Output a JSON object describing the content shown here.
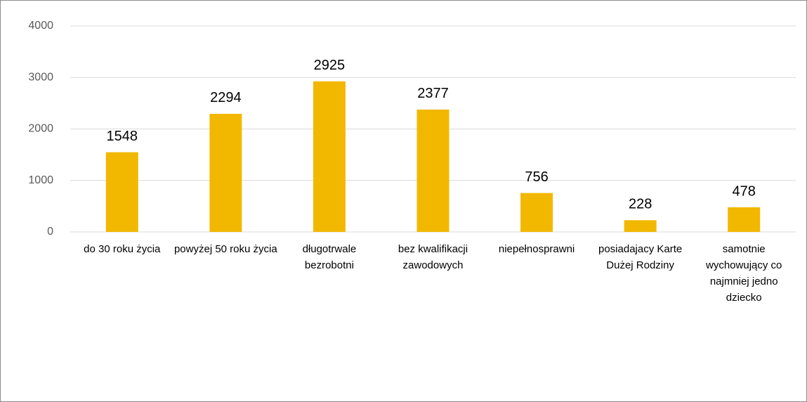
{
  "chart_data": {
    "type": "bar",
    "categories": [
      "do 30 roku życia",
      "powyżej 50 roku życia",
      "długotrwale bezrobotni",
      "bez kwalifikacji zawodowych",
      "niepełnosprawni",
      "posiadajacy Karte Dużej Rodziny",
      "samotnie wychowujący co najmniej jedno dziecko"
    ],
    "values": [
      1548,
      2294,
      2925,
      2377,
      756,
      228,
      478
    ],
    "color": "#f2b800",
    "ylim": [
      0,
      4000
    ],
    "yticks": [
      0,
      1000,
      2000,
      3000,
      4000
    ],
    "grid": true
  }
}
